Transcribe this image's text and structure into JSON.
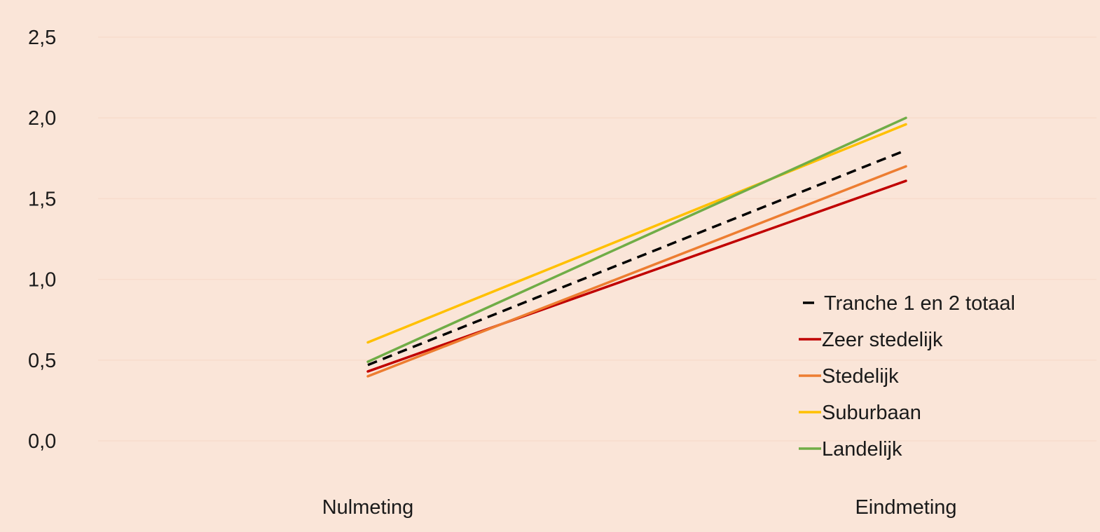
{
  "chart_data": {
    "type": "line",
    "categories": [
      "Nulmeting",
      "Eindmeting"
    ],
    "series": [
      {
        "name": "Tranche 1 en 2 totaal",
        "values": [
          0.47,
          1.8
        ],
        "color": "#000000",
        "dashed": true
      },
      {
        "name": "Zeer stedelijk",
        "values": [
          0.43,
          1.61
        ],
        "color": "#c00000",
        "dashed": false
      },
      {
        "name": "Stedelijk",
        "values": [
          0.4,
          1.7
        ],
        "color": "#ed7d31",
        "dashed": false
      },
      {
        "name": "Suburbaan",
        "values": [
          0.61,
          1.96
        ],
        "color": "#ffc000",
        "dashed": false
      },
      {
        "name": "Landelijk",
        "values": [
          0.49,
          2.0
        ],
        "color": "#70ad47",
        "dashed": false
      }
    ],
    "ylim": [
      0,
      2.5
    ],
    "yticks": [
      "0,0",
      "0,5",
      "1,0",
      "1,5",
      "2,0",
      "2,5"
    ],
    "grid": true,
    "legend": "right",
    "background": "#fae5d8",
    "gridColor": "#f7dccc"
  }
}
